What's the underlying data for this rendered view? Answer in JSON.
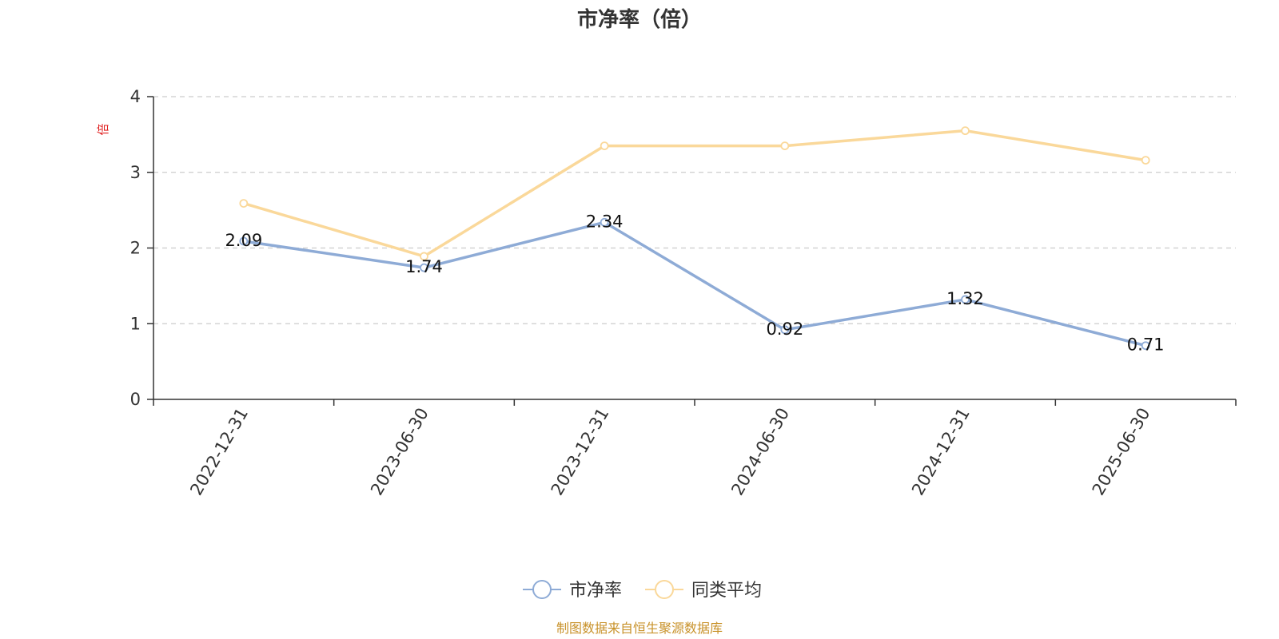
{
  "chart_data": {
    "type": "line",
    "title": "市净率（倍）",
    "ylabel": "倍",
    "xlabel": "",
    "categories": [
      "2022-12-31",
      "2023-06-30",
      "2023-12-31",
      "2024-06-30",
      "2024-12-31",
      "2025-06-30"
    ],
    "ylim": [
      0,
      4
    ],
    "yticks": [
      0,
      1,
      2,
      3,
      4
    ],
    "grid": true,
    "legend_position": "bottom-center",
    "series": [
      {
        "name": "市净率",
        "color": "#8eabd6",
        "values": [
          2.09,
          1.74,
          2.34,
          0.92,
          1.32,
          0.71
        ],
        "data_labels": [
          "2.09",
          "1.74",
          "2.34",
          "0.92",
          "1.32",
          "0.71"
        ]
      },
      {
        "name": "同类平均",
        "color": "#fad89a",
        "values": [
          2.59,
          1.89,
          3.35,
          3.35,
          3.55,
          3.16
        ]
      }
    ]
  },
  "footer": {
    "source_text": "制图数据来自恒生聚源数据库",
    "source_color": "#c8922a"
  },
  "colors": {
    "unit_label": "#e02020",
    "axis": "#333333",
    "grid": "#cccccc"
  }
}
